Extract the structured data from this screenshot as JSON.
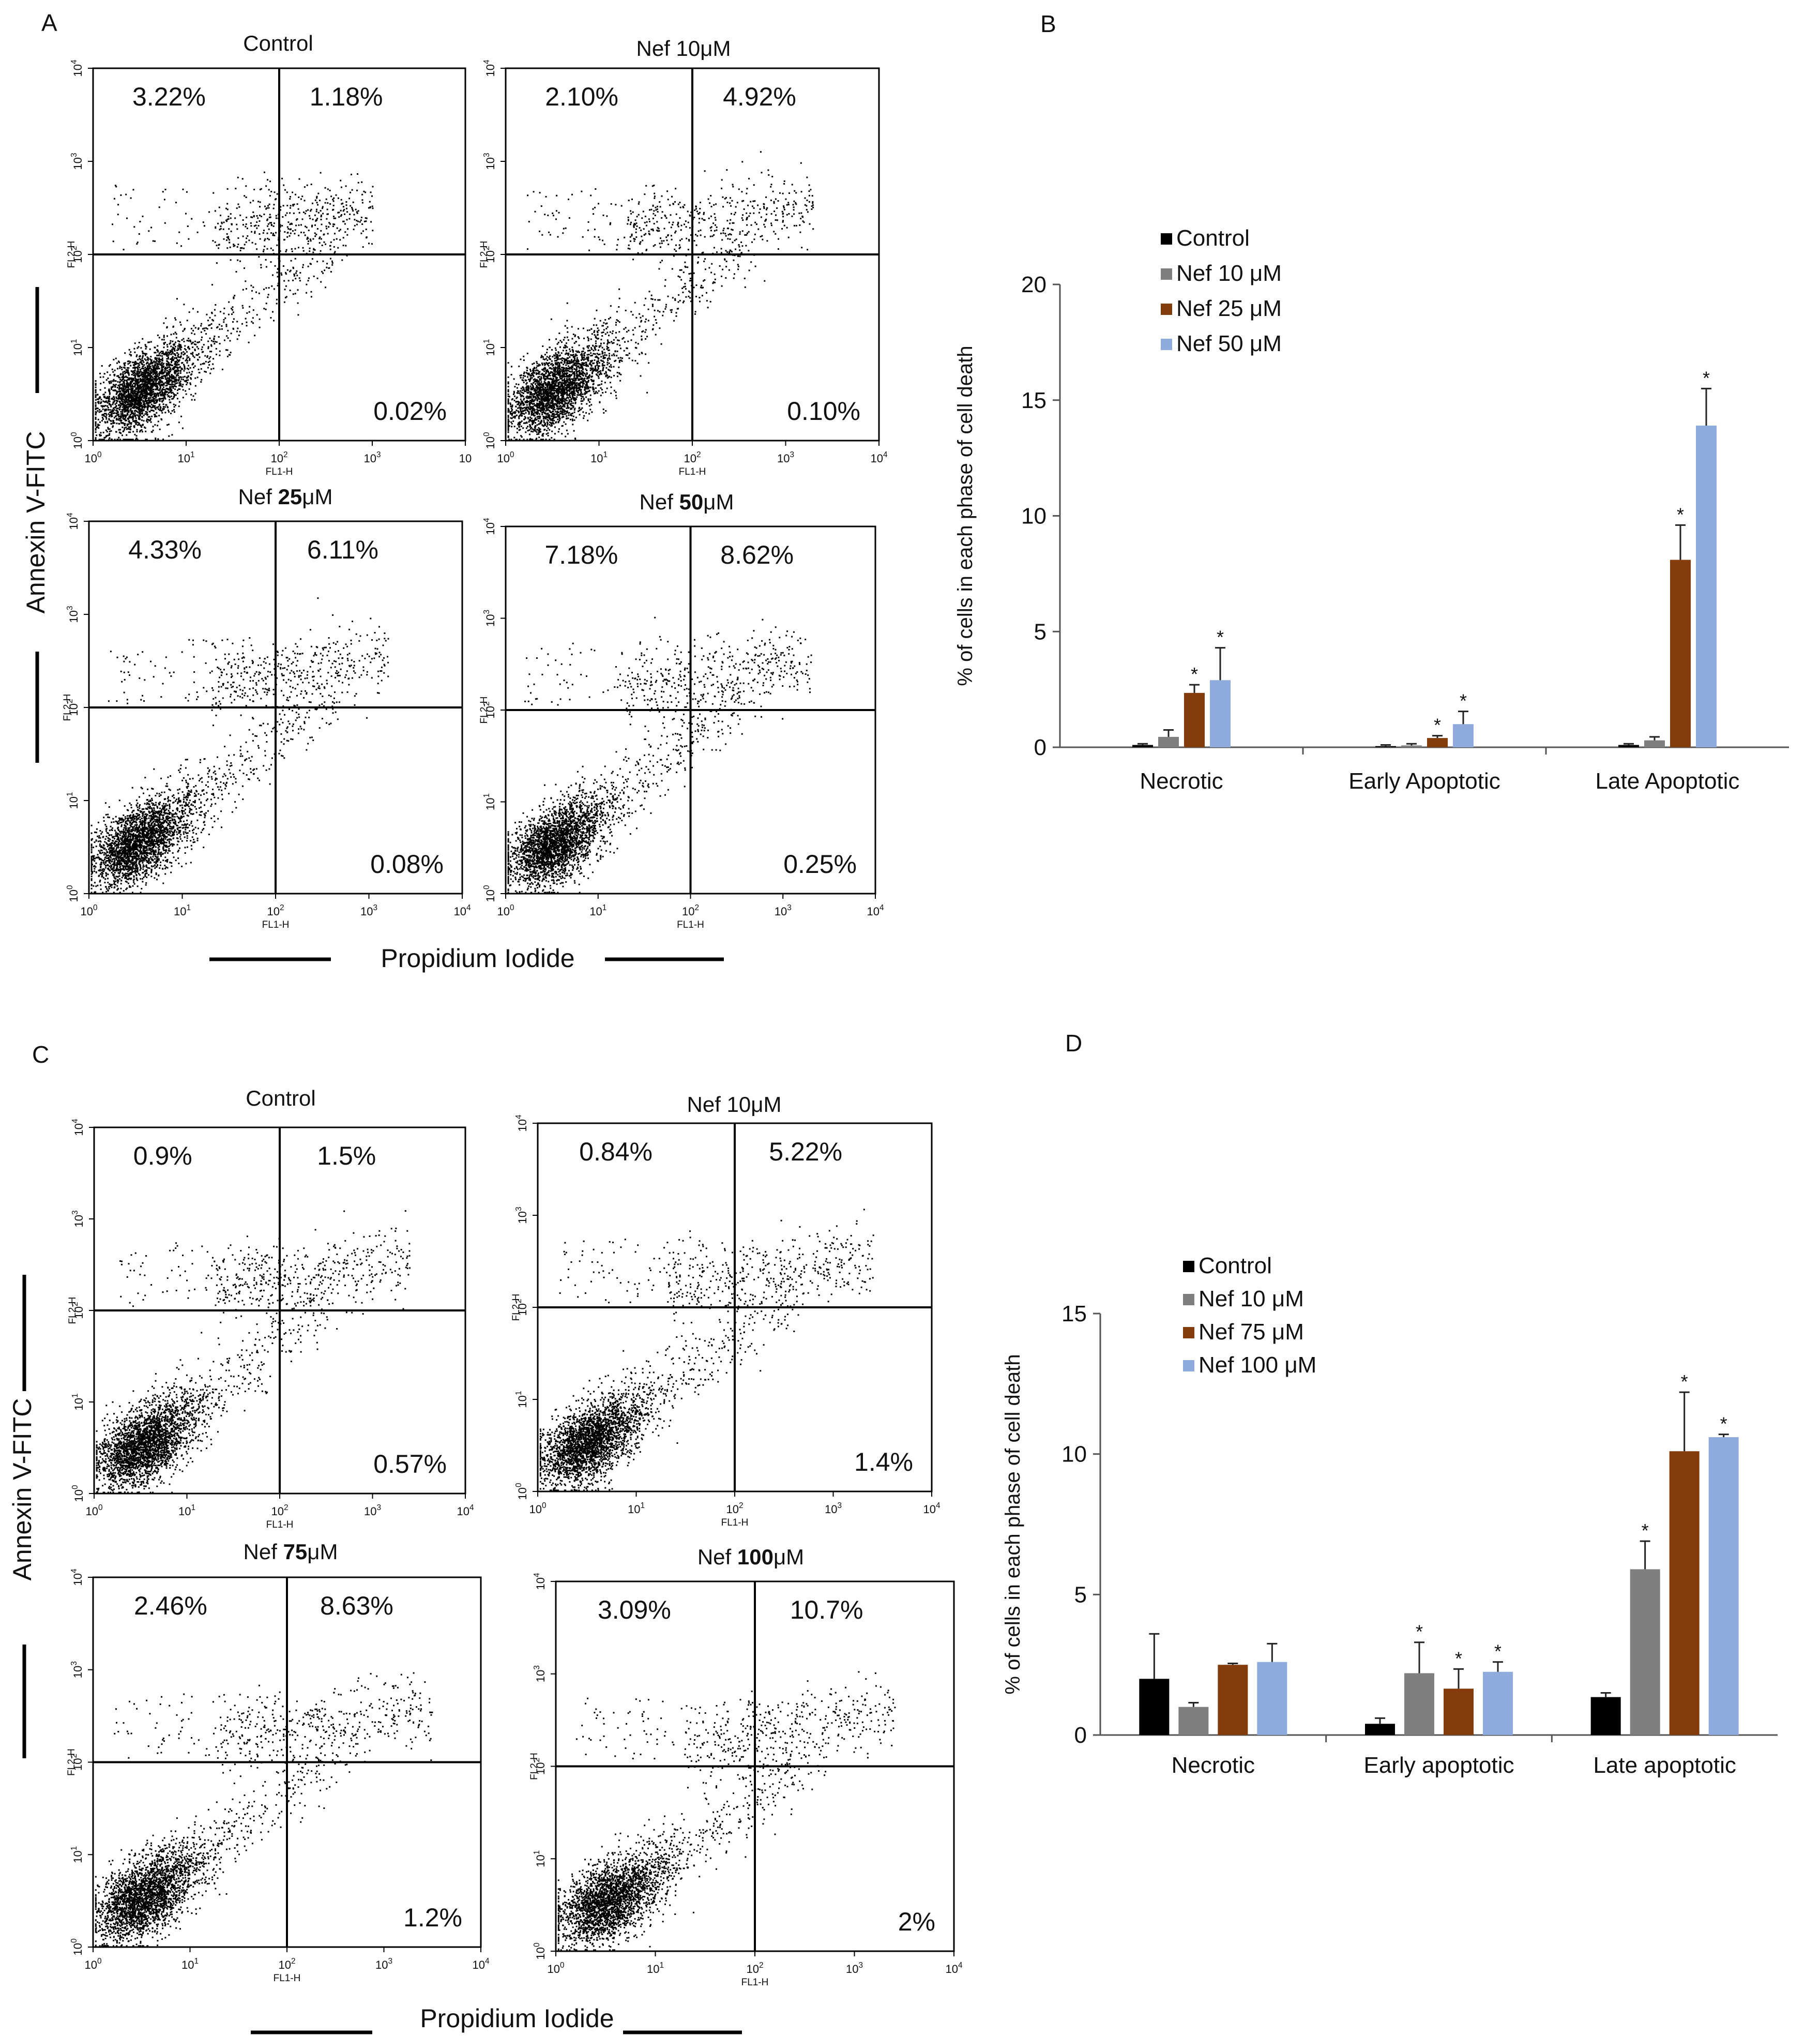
{
  "figure": {
    "panel_labels": [
      "A",
      "B",
      "C",
      "D"
    ],
    "flow_ylabel": "Annexin V-FITC",
    "flow_xlabel": "Propidium Iodide",
    "fl1": "FL1-H",
    "fl2": "FL2-H"
  },
  "chart_data": [
    {
      "panel": "A",
      "type": "scatter",
      "subtype": "flow-cytometry-quadrant",
      "xlabel": "Propidium Iodide",
      "ylabel": "Annexin V-FITC",
      "axis_scale": "log",
      "xlim": [
        1,
        10000
      ],
      "ylim": [
        1,
        10000
      ],
      "gate": 100,
      "tick_labels": [
        "10^0",
        "10^1",
        "10^2",
        "10^3",
        "10^4"
      ],
      "plots": [
        {
          "title": "Control",
          "title_pre": "Control",
          "title_bold": "",
          "title_post": "",
          "upper_left": "3.22%",
          "upper_right": "1.18%",
          "lower_right": "0.02%",
          "last_x_tick": "10",
          "late_spread": 3.0
        },
        {
          "title": "Nef 10μM",
          "title_pre": "Nef 10μM",
          "title_bold": "",
          "title_post": "",
          "upper_left": "2.10%",
          "upper_right": "4.92%",
          "lower_right": "0.10%",
          "last_x_tick": "10^4",
          "late_spread": 3.3
        },
        {
          "title": "Nef 25μM",
          "title_pre": "Nef ",
          "title_bold": "25",
          "title_post": "μM",
          "upper_left": "4.33%",
          "upper_right": "6.11%",
          "lower_right": "0.08%",
          "last_x_tick": "10^4",
          "late_spread": 3.2
        },
        {
          "title": "Nef 50μM",
          "title_pre": "Nef ",
          "title_bold": "50",
          "title_post": "μM",
          "upper_left": "7.18%",
          "upper_right": "8.62%",
          "lower_right": "0.25%",
          "last_x_tick": "10^4",
          "late_spread": 3.3
        }
      ]
    },
    {
      "panel": "B",
      "type": "bar",
      "title": "",
      "xlabel": "",
      "ylabel": "% of cells in each phase of cell death",
      "ylim": [
        0,
        20
      ],
      "yticks": [
        0,
        5,
        10,
        15,
        20
      ],
      "categories": [
        "Necrotic",
        "Early Apoptotic",
        "Late Apoptotic"
      ],
      "series": [
        {
          "name": "Control",
          "color": "#000000",
          "values": [
            0.1,
            0.05,
            0.1
          ],
          "errors": [
            0.05,
            0.05,
            0.05
          ],
          "significant": [
            false,
            false,
            false
          ]
        },
        {
          "name": "Nef 10 μM",
          "color": "#7f7f7f",
          "values": [
            0.45,
            0.08,
            0.3
          ],
          "errors": [
            0.3,
            0.07,
            0.15
          ],
          "significant": [
            false,
            false,
            false
          ]
        },
        {
          "name": "Nef 25 μM",
          "color": "#843c0c",
          "values": [
            2.35,
            0.4,
            8.1
          ],
          "errors": [
            0.35,
            0.1,
            1.5
          ],
          "significant": [
            true,
            true,
            true
          ]
        },
        {
          "name": "Nef 50 μM",
          "color": "#8faadc",
          "values": [
            2.9,
            1.0,
            13.9
          ],
          "errors": [
            1.4,
            0.55,
            1.6
          ],
          "significant": [
            true,
            true,
            true
          ]
        }
      ],
      "legend": "top-left"
    },
    {
      "panel": "C",
      "type": "scatter",
      "subtype": "flow-cytometry-quadrant",
      "xlabel": "Propidium Iodide",
      "ylabel": "Annexin V-FITC",
      "axis_scale": "log",
      "xlim": [
        1,
        10000
      ],
      "ylim": [
        1,
        10000
      ],
      "gate": 100,
      "tick_labels": [
        "10^0",
        "10^1",
        "10^2",
        "10^3",
        "10^4"
      ],
      "plots": [
        {
          "title": "Control",
          "title_pre": "Control",
          "title_bold": "",
          "title_post": "",
          "upper_left": "0.9%",
          "upper_right": "1.5%",
          "lower_right": "0.57%",
          "last_x_tick": "10^4",
          "late_spread": 3.4
        },
        {
          "title": "Nef 10μM",
          "title_pre": "Nef 10μM",
          "title_bold": "",
          "title_post": "",
          "upper_left": "0.84%",
          "upper_right": "5.22%",
          "lower_right": "1.4%",
          "last_x_tick": "10^4",
          "late_spread": 3.4
        },
        {
          "title": "Nef 75μM",
          "title_pre": "Nef ",
          "title_bold": "75",
          "title_post": "μM",
          "upper_left": "2.46%",
          "upper_right": "8.63%",
          "lower_right": "1.2%",
          "last_x_tick": "10^4",
          "late_spread": 3.5
        },
        {
          "title": "Nef 100μM",
          "title_pre": "Nef ",
          "title_bold": "100",
          "title_post": "μM",
          "upper_left": "3.09%",
          "upper_right": "10.7%",
          "lower_right": "2%",
          "last_x_tick": "10^4",
          "late_spread": 3.4
        }
      ]
    },
    {
      "panel": "D",
      "type": "bar",
      "title": "",
      "xlabel": "",
      "ylabel": "% of cells in each phase of cell death",
      "ylim": [
        0,
        15
      ],
      "yticks": [
        0,
        5,
        10,
        15
      ],
      "categories": [
        "Necrotic",
        "Early apoptotic",
        "Late apoptotic"
      ],
      "series": [
        {
          "name": "Control",
          "color": "#000000",
          "values": [
            2.0,
            0.4,
            1.35
          ],
          "errors": [
            1.6,
            0.2,
            0.15
          ],
          "significant": [
            false,
            false,
            false
          ]
        },
        {
          "name": "Nef 10 μM",
          "color": "#7f7f7f",
          "values": [
            1.0,
            2.2,
            5.9
          ],
          "errors": [
            0.15,
            1.1,
            1.0
          ],
          "significant": [
            false,
            true,
            true
          ]
        },
        {
          "name": "Nef 75 μM",
          "color": "#843c0c",
          "values": [
            2.5,
            1.65,
            10.1
          ],
          "errors": [
            0.05,
            0.7,
            2.1
          ],
          "significant": [
            false,
            true,
            true
          ]
        },
        {
          "name": "Nef 100 μM",
          "color": "#8faadc",
          "values": [
            2.6,
            2.25,
            10.6
          ],
          "errors": [
            0.65,
            0.35,
            0.1
          ],
          "significant": [
            false,
            true,
            true
          ]
        }
      ],
      "legend": "top-left"
    }
  ]
}
